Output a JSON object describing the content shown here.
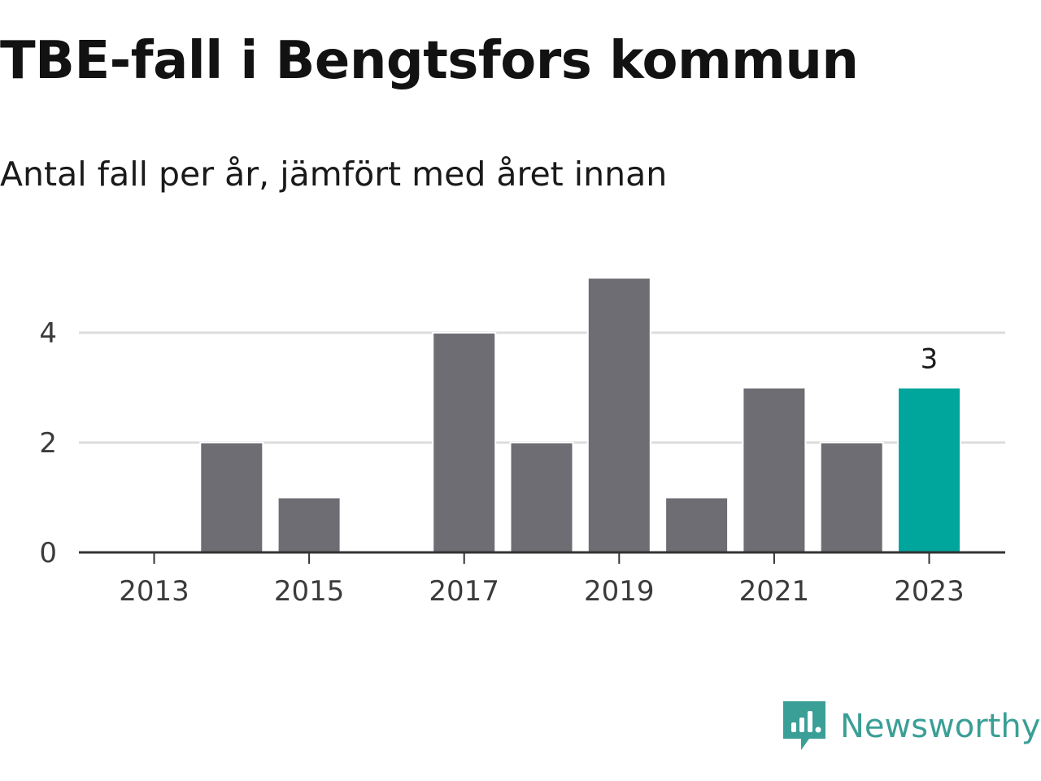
{
  "header": {
    "title": "TBE-fall i Bengtsfors kommun",
    "subtitle": "Antal fall per år, jämfört med året innan"
  },
  "brand": {
    "name": "Newsworthy",
    "icon": "newsworthy-logo-icon",
    "color": "#3a9f96"
  },
  "colors": {
    "bar": "#6e6d73",
    "highlight": "#00a59b",
    "grid": "#dcdcdc",
    "axis": "#333333"
  },
  "chart_data": {
    "type": "bar",
    "categories": [
      2013,
      2014,
      2015,
      2016,
      2017,
      2018,
      2019,
      2020,
      2021,
      2022,
      2023
    ],
    "values": [
      0,
      2,
      1,
      0,
      4,
      2,
      5,
      1,
      3,
      2,
      3
    ],
    "highlight_category": 2023,
    "data_labels": [
      {
        "category": 2023,
        "text": "3"
      }
    ],
    "x_tick_labels": [
      "2013",
      "2015",
      "2017",
      "2019",
      "2021",
      "2023"
    ],
    "y_ticks": [
      0,
      2,
      4
    ],
    "ylim": [
      0,
      5
    ],
    "grid": true,
    "legend": "none",
    "title": "TBE-fall i Bengtsfors kommun",
    "subtitle": "Antal fall per år, jämfört med året innan"
  }
}
